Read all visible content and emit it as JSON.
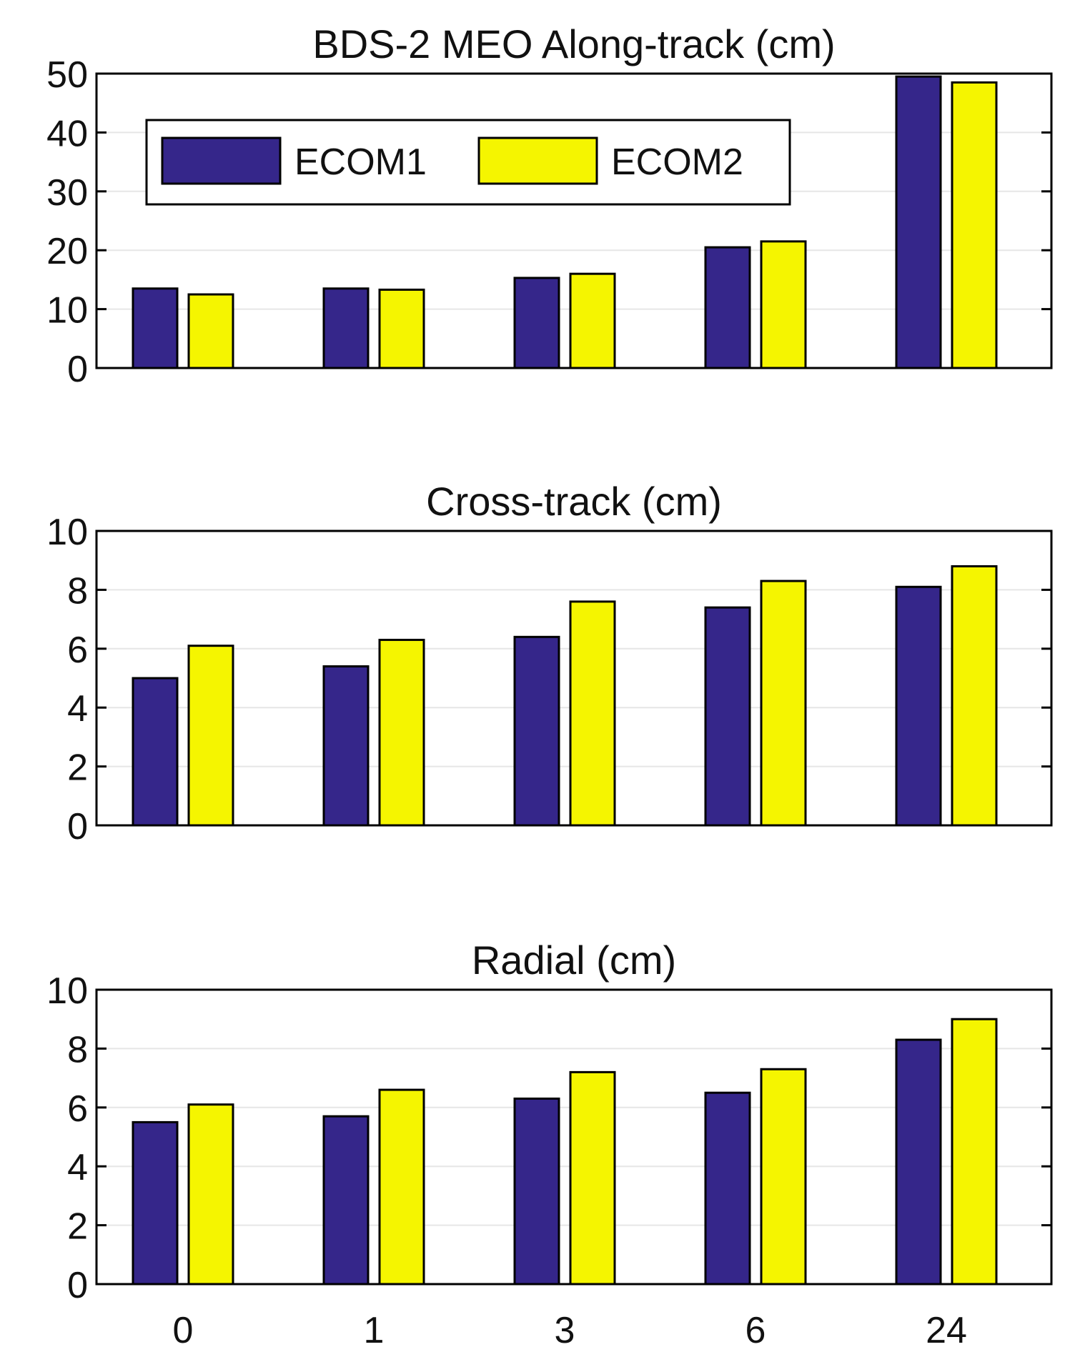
{
  "chart_data": [
    {
      "type": "bar",
      "title": "BDS-2 MEO Along-track (cm)",
      "xlabel": "",
      "ylabel": "",
      "categories": [
        "0",
        "1",
        "3",
        "6",
        "24"
      ],
      "ylim": [
        0,
        50
      ],
      "yticks": [
        0,
        10,
        20,
        30,
        40,
        50
      ],
      "grid": true,
      "legend": "top-left",
      "series": [
        {
          "name": "ECOM1",
          "color": "#35268a",
          "values": [
            13.5,
            13.5,
            15.3,
            20.5,
            49.5
          ]
        },
        {
          "name": "ECOM2",
          "color": "#f5f500",
          "values": [
            12.5,
            13.3,
            16.0,
            21.5,
            48.5
          ]
        }
      ]
    },
    {
      "type": "bar",
      "title": "Cross-track (cm)",
      "xlabel": "",
      "ylabel": "",
      "categories": [
        "0",
        "1",
        "3",
        "6",
        "24"
      ],
      "ylim": [
        0,
        10
      ],
      "yticks": [
        0,
        2,
        4,
        6,
        8,
        10
      ],
      "grid": true,
      "series": [
        {
          "name": "ECOM1",
          "color": "#35268a",
          "values": [
            5.0,
            5.4,
            6.4,
            7.4,
            8.1
          ]
        },
        {
          "name": "ECOM2",
          "color": "#f5f500",
          "values": [
            6.1,
            6.3,
            7.6,
            8.3,
            8.8
          ]
        }
      ]
    },
    {
      "type": "bar",
      "title": "Radial (cm)",
      "xlabel": "",
      "ylabel": "",
      "categories": [
        "0",
        "1",
        "3",
        "6",
        "24"
      ],
      "ylim": [
        0,
        10
      ],
      "yticks": [
        0,
        2,
        4,
        6,
        8,
        10
      ],
      "grid": true,
      "show_x_tick_labels": true,
      "series": [
        {
          "name": "ECOM1",
          "color": "#35268a",
          "values": [
            5.5,
            5.7,
            6.3,
            6.5,
            8.3
          ]
        },
        {
          "name": "ECOM2",
          "color": "#f5f500",
          "values": [
            6.1,
            6.6,
            7.2,
            7.3,
            9.0
          ]
        }
      ]
    }
  ]
}
